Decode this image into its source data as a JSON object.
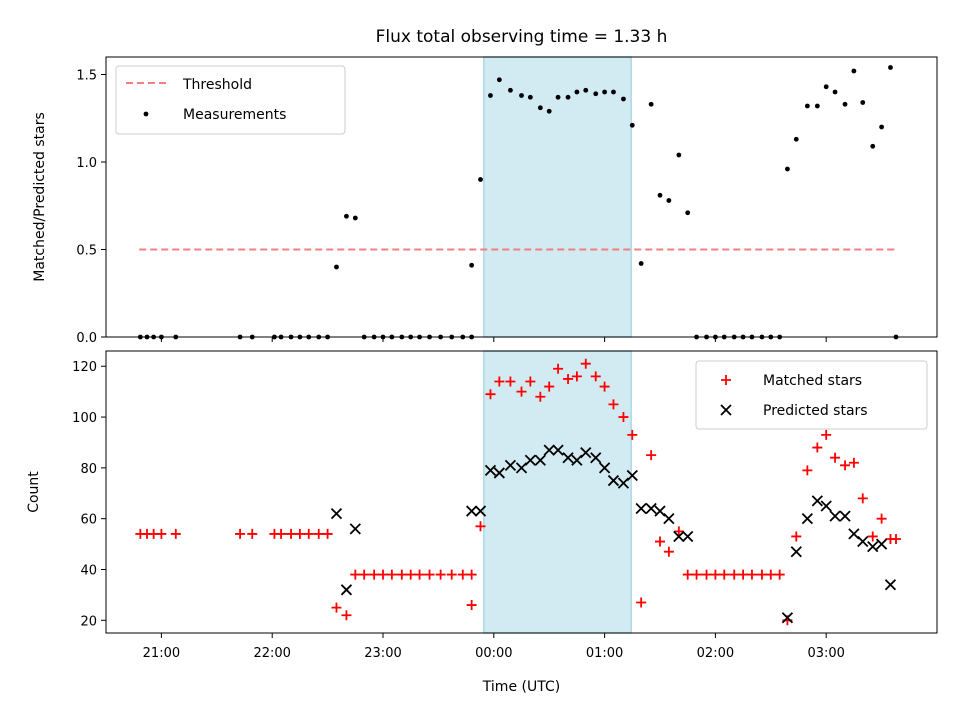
{
  "chart_data": [
    {
      "type": "scatter",
      "title": "Flux total observing time = 1.33 h",
      "xlabel": "",
      "ylabel": "Matched/Predicted stars",
      "ylim": [
        0,
        1.6
      ],
      "yticks": [
        0,
        0.5,
        1.0,
        1.5
      ],
      "ytick_labels": [
        "0.0",
        "0.5",
        "1.0",
        "1.5"
      ],
      "xlim_hours": [
        20.5,
        28.0
      ],
      "shaded_span_hours": [
        23.91,
        25.24
      ],
      "shade_color": "#add8e6",
      "threshold": {
        "name": "Threshold",
        "y": 0.5,
        "x_range_hours": [
          20.8,
          27.63
        ],
        "color": "#f08080",
        "style": "dashed"
      },
      "legend": {
        "position": "upper left",
        "entries": [
          "Threshold",
          "Measurements"
        ]
      },
      "series": [
        {
          "name": "Measurements",
          "color": "#000000",
          "marker": "dot",
          "points": [
            [
              20.81,
              0
            ],
            [
              20.87,
              0
            ],
            [
              20.93,
              0
            ],
            [
              21.0,
              0
            ],
            [
              21.13,
              0
            ],
            [
              21.71,
              0
            ],
            [
              21.82,
              0
            ],
            [
              22.02,
              0
            ],
            [
              22.08,
              0
            ],
            [
              22.17,
              0
            ],
            [
              22.25,
              0
            ],
            [
              22.33,
              0
            ],
            [
              22.42,
              0
            ],
            [
              22.5,
              0
            ],
            [
              22.58,
              0.4
            ],
            [
              22.67,
              0.69
            ],
            [
              22.75,
              0.68
            ],
            [
              22.83,
              0
            ],
            [
              22.92,
              0
            ],
            [
              23.0,
              0
            ],
            [
              23.08,
              0
            ],
            [
              23.17,
              0
            ],
            [
              23.25,
              0
            ],
            [
              23.33,
              0
            ],
            [
              23.42,
              0
            ],
            [
              23.52,
              0
            ],
            [
              23.62,
              0
            ],
            [
              23.72,
              0
            ],
            [
              23.8,
              0
            ],
            [
              23.8,
              0.41
            ],
            [
              23.88,
              0.9
            ],
            [
              23.97,
              1.38
            ],
            [
              24.05,
              1.47
            ],
            [
              24.15,
              1.41
            ],
            [
              24.25,
              1.38
            ],
            [
              24.33,
              1.37
            ],
            [
              24.42,
              1.31
            ],
            [
              24.5,
              1.29
            ],
            [
              24.58,
              1.37
            ],
            [
              24.67,
              1.37
            ],
            [
              24.75,
              1.4
            ],
            [
              24.83,
              1.41
            ],
            [
              24.92,
              1.39
            ],
            [
              25.0,
              1.4
            ],
            [
              25.08,
              1.4
            ],
            [
              25.17,
              1.36
            ],
            [
              25.25,
              1.21
            ],
            [
              25.33,
              0.42
            ],
            [
              25.42,
              1.33
            ],
            [
              25.5,
              0.81
            ],
            [
              25.58,
              0.78
            ],
            [
              25.67,
              1.04
            ],
            [
              25.75,
              0.71
            ],
            [
              25.83,
              0
            ],
            [
              25.92,
              0
            ],
            [
              26.0,
              0
            ],
            [
              26.08,
              0
            ],
            [
              26.17,
              0
            ],
            [
              26.25,
              0
            ],
            [
              26.33,
              0
            ],
            [
              26.42,
              0
            ],
            [
              26.5,
              0
            ],
            [
              26.58,
              0
            ],
            [
              26.65,
              0.96
            ],
            [
              26.73,
              1.13
            ],
            [
              26.83,
              1.32
            ],
            [
              26.92,
              1.32
            ],
            [
              27.0,
              1.43
            ],
            [
              27.08,
              1.4
            ],
            [
              27.17,
              1.33
            ],
            [
              27.25,
              1.52
            ],
            [
              27.33,
              1.34
            ],
            [
              27.42,
              1.09
            ],
            [
              27.5,
              1.2
            ],
            [
              27.58,
              1.54
            ],
            [
              27.63,
              0
            ]
          ]
        }
      ]
    },
    {
      "type": "scatter",
      "title": "",
      "xlabel": "Time (UTC)",
      "ylabel": "Count",
      "ylim": [
        15,
        126
      ],
      "yticks": [
        20,
        40,
        60,
        80,
        100,
        120
      ],
      "ytick_labels": [
        "20",
        "40",
        "60",
        "80",
        "100",
        "120"
      ],
      "xlim_hours": [
        20.5,
        28.0
      ],
      "xticks_hours": [
        21,
        22,
        23,
        24,
        25,
        26,
        27
      ],
      "xtick_labels": [
        "21:00",
        "22:00",
        "23:00",
        "00:00",
        "01:00",
        "02:00",
        "03:00"
      ],
      "shaded_span_hours": [
        23.91,
        25.24
      ],
      "shade_color": "#add8e6",
      "legend": {
        "position": "upper right",
        "entries": [
          "Matched stars",
          "Predicted stars"
        ]
      },
      "series": [
        {
          "name": "Matched stars",
          "color": "#ff0000",
          "marker": "plus",
          "points": [
            [
              20.81,
              54
            ],
            [
              20.87,
              54
            ],
            [
              20.93,
              54
            ],
            [
              21.0,
              54
            ],
            [
              21.13,
              54
            ],
            [
              21.71,
              54
            ],
            [
              21.82,
              54
            ],
            [
              22.02,
              54
            ],
            [
              22.08,
              54
            ],
            [
              22.17,
              54
            ],
            [
              22.25,
              54
            ],
            [
              22.33,
              54
            ],
            [
              22.42,
              54
            ],
            [
              22.5,
              54
            ],
            [
              22.58,
              25
            ],
            [
              22.67,
              22
            ],
            [
              22.75,
              38
            ],
            [
              22.83,
              38
            ],
            [
              22.92,
              38
            ],
            [
              23.0,
              38
            ],
            [
              23.08,
              38
            ],
            [
              23.17,
              38
            ],
            [
              23.25,
              38
            ],
            [
              23.33,
              38
            ],
            [
              23.42,
              38
            ],
            [
              23.52,
              38
            ],
            [
              23.62,
              38
            ],
            [
              23.72,
              38
            ],
            [
              23.8,
              38
            ],
            [
              23.8,
              26
            ],
            [
              23.88,
              57
            ],
            [
              23.97,
              109
            ],
            [
              24.05,
              114
            ],
            [
              24.15,
              114
            ],
            [
              24.25,
              110
            ],
            [
              24.33,
              114
            ],
            [
              24.42,
              108
            ],
            [
              24.5,
              112
            ],
            [
              24.58,
              119
            ],
            [
              24.67,
              115
            ],
            [
              24.75,
              116
            ],
            [
              24.83,
              121
            ],
            [
              24.92,
              116
            ],
            [
              25.0,
              112
            ],
            [
              25.08,
              105
            ],
            [
              25.17,
              100
            ],
            [
              25.25,
              93
            ],
            [
              25.33,
              27
            ],
            [
              25.42,
              85
            ],
            [
              25.5,
              51
            ],
            [
              25.58,
              47
            ],
            [
              25.67,
              55
            ],
            [
              25.75,
              38
            ],
            [
              25.83,
              38
            ],
            [
              25.92,
              38
            ],
            [
              26.0,
              38
            ],
            [
              26.08,
              38
            ],
            [
              26.17,
              38
            ],
            [
              26.25,
              38
            ],
            [
              26.33,
              38
            ],
            [
              26.42,
              38
            ],
            [
              26.5,
              38
            ],
            [
              26.58,
              38
            ],
            [
              26.65,
              20
            ],
            [
              26.73,
              53
            ],
            [
              26.83,
              79
            ],
            [
              26.92,
              88
            ],
            [
              27.0,
              93
            ],
            [
              27.08,
              84
            ],
            [
              27.17,
              81
            ],
            [
              27.25,
              82
            ],
            [
              27.33,
              68
            ],
            [
              27.42,
              53
            ],
            [
              27.5,
              60
            ],
            [
              27.58,
              52
            ],
            [
              27.63,
              52
            ]
          ]
        },
        {
          "name": "Predicted stars",
          "color": "#000000",
          "marker": "x",
          "points": [
            [
              22.58,
              62
            ],
            [
              22.67,
              32
            ],
            [
              22.75,
              56
            ],
            [
              23.8,
              63
            ],
            [
              23.88,
              63
            ],
            [
              23.97,
              79
            ],
            [
              24.05,
              78
            ],
            [
              24.15,
              81
            ],
            [
              24.25,
              80
            ],
            [
              24.33,
              83
            ],
            [
              24.42,
              83
            ],
            [
              24.5,
              87
            ],
            [
              24.58,
              87
            ],
            [
              24.67,
              84
            ],
            [
              24.75,
              83
            ],
            [
              24.83,
              86
            ],
            [
              24.92,
              84
            ],
            [
              25.0,
              80
            ],
            [
              25.08,
              75
            ],
            [
              25.17,
              74
            ],
            [
              25.25,
              77
            ],
            [
              25.33,
              64
            ],
            [
              25.42,
              64
            ],
            [
              25.5,
              63
            ],
            [
              25.58,
              60
            ],
            [
              25.67,
              53
            ],
            [
              25.75,
              53
            ],
            [
              26.65,
              21
            ],
            [
              26.73,
              47
            ],
            [
              26.83,
              60
            ],
            [
              26.92,
              67
            ],
            [
              27.0,
              65
            ],
            [
              27.08,
              61
            ],
            [
              27.17,
              61
            ],
            [
              27.25,
              54
            ],
            [
              27.33,
              51
            ],
            [
              27.42,
              49
            ],
            [
              27.5,
              50
            ],
            [
              27.58,
              34
            ]
          ]
        }
      ]
    }
  ]
}
